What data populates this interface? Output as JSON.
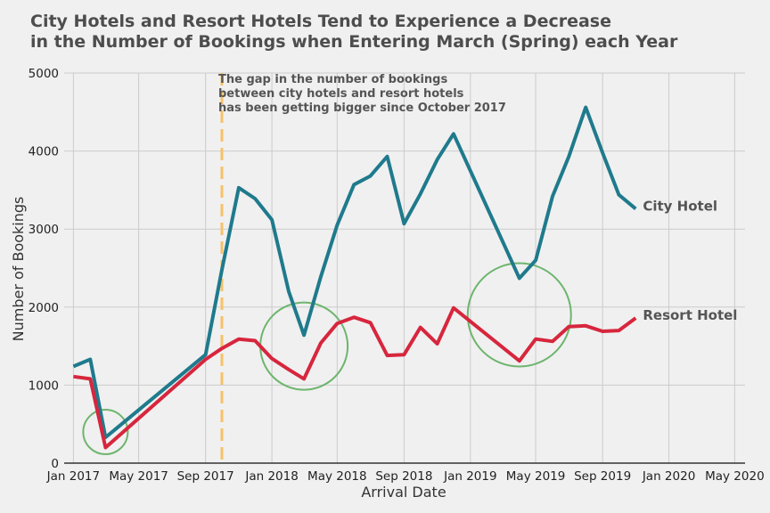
{
  "chart_data": {
    "type": "line",
    "title_lines": [
      "City Hotels and Resort Hotels Tend to Experience a Decrease",
      "in the Number of Bookings when Entering March (Spring) each Year"
    ],
    "xlabel": "Arrival Date",
    "ylabel": "Number of Bookings",
    "ylim": [
      0,
      5000
    ],
    "yticks": [
      0,
      1000,
      2000,
      3000,
      4000,
      5000
    ],
    "xlim": [
      "2016-12-15",
      "2020-05-20"
    ],
    "xticks": [
      {
        "date": "2017-01-01",
        "label": "Jan 2017"
      },
      {
        "date": "2017-05-01",
        "label": "May 2017"
      },
      {
        "date": "2017-09-01",
        "label": "Sep 2017"
      },
      {
        "date": "2018-01-01",
        "label": "Jan 2018"
      },
      {
        "date": "2018-05-01",
        "label": "May 2018"
      },
      {
        "date": "2018-09-01",
        "label": "Sep 2018"
      },
      {
        "date": "2019-01-01",
        "label": "Jan 2019"
      },
      {
        "date": "2019-05-01",
        "label": "May 2019"
      },
      {
        "date": "2019-09-01",
        "label": "Sep 2019"
      },
      {
        "date": "2020-01-01",
        "label": "Jan 2020"
      },
      {
        "date": "2020-05-01",
        "label": "May 2020"
      }
    ],
    "grid": true,
    "series": [
      {
        "name": "City Hotel",
        "color": "#1f7a8c",
        "points": [
          [
            "2017-01-01",
            1240
          ],
          [
            "2017-02-01",
            1330
          ],
          [
            "2017-03-01",
            330
          ],
          [
            "2017-09-01",
            1390
          ],
          [
            "2017-10-01",
            2480
          ],
          [
            "2017-11-01",
            3530
          ],
          [
            "2017-12-01",
            3390
          ],
          [
            "2018-01-01",
            3120
          ],
          [
            "2018-02-01",
            2200
          ],
          [
            "2018-03-01",
            1640
          ],
          [
            "2018-04-01",
            2390
          ],
          [
            "2018-05-01",
            3050
          ],
          [
            "2018-06-01",
            3570
          ],
          [
            "2018-07-01",
            3680
          ],
          [
            "2018-08-01",
            3930
          ],
          [
            "2018-09-01",
            3070
          ],
          [
            "2018-10-01",
            3450
          ],
          [
            "2018-11-01",
            3890
          ],
          [
            "2018-12-01",
            4220
          ],
          [
            "2019-04-01",
            2370
          ],
          [
            "2019-05-01",
            2600
          ],
          [
            "2019-06-01",
            3420
          ],
          [
            "2019-07-01",
            3930
          ],
          [
            "2019-08-01",
            4560
          ],
          [
            "2019-09-01",
            3980
          ],
          [
            "2019-10-01",
            3440
          ],
          [
            "2019-11-01",
            3260
          ]
        ]
      },
      {
        "name": "Resort Hotel",
        "color": "#d7263d",
        "points": [
          [
            "2017-01-01",
            1110
          ],
          [
            "2017-02-01",
            1080
          ],
          [
            "2017-03-01",
            200
          ],
          [
            "2017-09-01",
            1330
          ],
          [
            "2017-10-01",
            1470
          ],
          [
            "2017-11-01",
            1590
          ],
          [
            "2017-12-01",
            1570
          ],
          [
            "2018-01-01",
            1340
          ],
          [
            "2018-02-01",
            1200
          ],
          [
            "2018-03-01",
            1080
          ],
          [
            "2018-04-01",
            1540
          ],
          [
            "2018-05-01",
            1790
          ],
          [
            "2018-06-01",
            1870
          ],
          [
            "2018-07-01",
            1800
          ],
          [
            "2018-08-01",
            1380
          ],
          [
            "2018-09-01",
            1390
          ],
          [
            "2018-10-01",
            1740
          ],
          [
            "2018-11-01",
            1530
          ],
          [
            "2018-12-01",
            1990
          ],
          [
            "2019-04-01",
            1310
          ],
          [
            "2019-05-01",
            1590
          ],
          [
            "2019-06-01",
            1560
          ],
          [
            "2019-07-01",
            1750
          ],
          [
            "2019-08-01",
            1760
          ],
          [
            "2019-09-01",
            1690
          ],
          [
            "2019-10-01",
            1700
          ],
          [
            "2019-11-01",
            1860
          ]
        ]
      }
    ],
    "annotations": {
      "vline": {
        "date": "2017-10-01",
        "color": "#f5c26b"
      },
      "note_lines": [
        "The gap in the number of bookings",
        "between city hotels and resort hotels",
        "has been getting bigger since October 2017"
      ],
      "circles_color": "#6db56d",
      "circles": [
        {
          "date": "2017-03-01",
          "value": 400
        },
        {
          "date": "2018-03-01",
          "value": 1500
        },
        {
          "date": "2019-04-01",
          "value": 1900
        }
      ]
    }
  }
}
